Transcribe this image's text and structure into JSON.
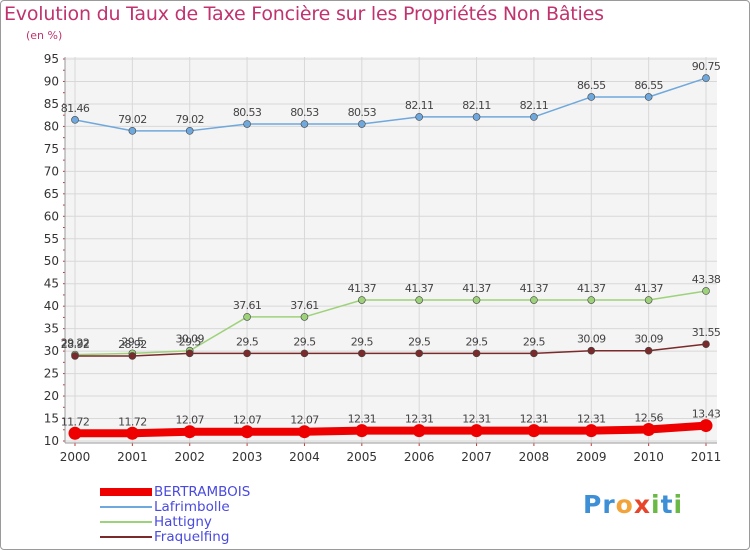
{
  "header": {
    "title": "Evolution du Taux de Taxe Foncière sur les Propriétés Non Bâties",
    "unit": "(en %)"
  },
  "logo": {
    "text": "Proxiti",
    "chars": [
      {
        "ch": "P",
        "color": "#3d8fd6"
      },
      {
        "ch": "r",
        "color": "#3d8fd6"
      },
      {
        "ch": "o",
        "color": "#f2a33a"
      },
      {
        "ch": "x",
        "color": "#e8442a"
      },
      {
        "ch": "i",
        "color": "#69b944"
      },
      {
        "ch": "t",
        "color": "#3d8fd6"
      },
      {
        "ch": "i",
        "color": "#69b944"
      }
    ]
  },
  "chart_data": {
    "type": "line",
    "title": "Evolution du Taux de Taxe Foncière sur les Propriétés Non Bâties",
    "ylabel": "(en %)",
    "xlabel": "",
    "x": [
      "2000",
      "2001",
      "2002",
      "2003",
      "2004",
      "2005",
      "2006",
      "2007",
      "2008",
      "2009",
      "2010",
      "2011"
    ],
    "ylim": [
      10,
      95
    ],
    "yticks": [
      "10",
      "15",
      "20",
      "25",
      "30",
      "35",
      "40",
      "45",
      "50",
      "55",
      "60",
      "65",
      "70",
      "75",
      "80",
      "85",
      "90",
      "95"
    ],
    "grid": true,
    "series": [
      {
        "name": "BERTRAMBOIS",
        "color": "#ee0000",
        "values": [
          11.72,
          11.72,
          12.07,
          12.07,
          12.07,
          12.31,
          12.31,
          12.31,
          12.31,
          12.31,
          12.56,
          13.43
        ],
        "labels": [
          "11.72",
          "11.72",
          "12.07",
          "12.07",
          "12.07",
          "12.31",
          "12.31",
          "12.31",
          "12.31",
          "12.31",
          "12.56",
          "13.43"
        ]
      },
      {
        "name": "Lafrimbolle",
        "color": "#6fa8dc",
        "values": [
          81.46,
          79.02,
          79.02,
          80.53,
          80.53,
          80.53,
          82.11,
          82.11,
          82.11,
          86.55,
          86.55,
          90.75
        ],
        "labels": [
          "81.46",
          "79.02",
          "79.02",
          "80.53",
          "80.53",
          "80.53",
          "82.11",
          "82.11",
          "82.11",
          "86.55",
          "86.55",
          "90.75"
        ]
      },
      {
        "name": "Hattigny",
        "color": "#9ed27a",
        "values": [
          29.22,
          29.5,
          30.09,
          37.61,
          37.61,
          41.37,
          41.37,
          41.37,
          41.37,
          41.37,
          41.37,
          43.38
        ],
        "labels": [
          "29.22",
          "29.5",
          "30.09",
          "37.61",
          "37.61",
          "41.37",
          "41.37",
          "41.37",
          "41.37",
          "41.37",
          "41.37",
          "43.38"
        ]
      },
      {
        "name": "Fraquelfing",
        "color": "#7a2a2a",
        "values": [
          28.92,
          28.92,
          29.5,
          29.5,
          29.5,
          29.5,
          29.5,
          29.5,
          29.5,
          30.09,
          30.09,
          31.55
        ],
        "labels": [
          "28.92",
          "28.92",
          "29.5",
          "29.5",
          "29.5",
          "29.5",
          "29.5",
          "29.5",
          "29.5",
          "30.09",
          "30.09",
          "31.55"
        ]
      }
    ],
    "legend": [
      "BERTRAMBOIS",
      "Lafrimbolle",
      "Hattigny",
      "Fraquelfing"
    ],
    "legend_position": "bottom-left"
  }
}
